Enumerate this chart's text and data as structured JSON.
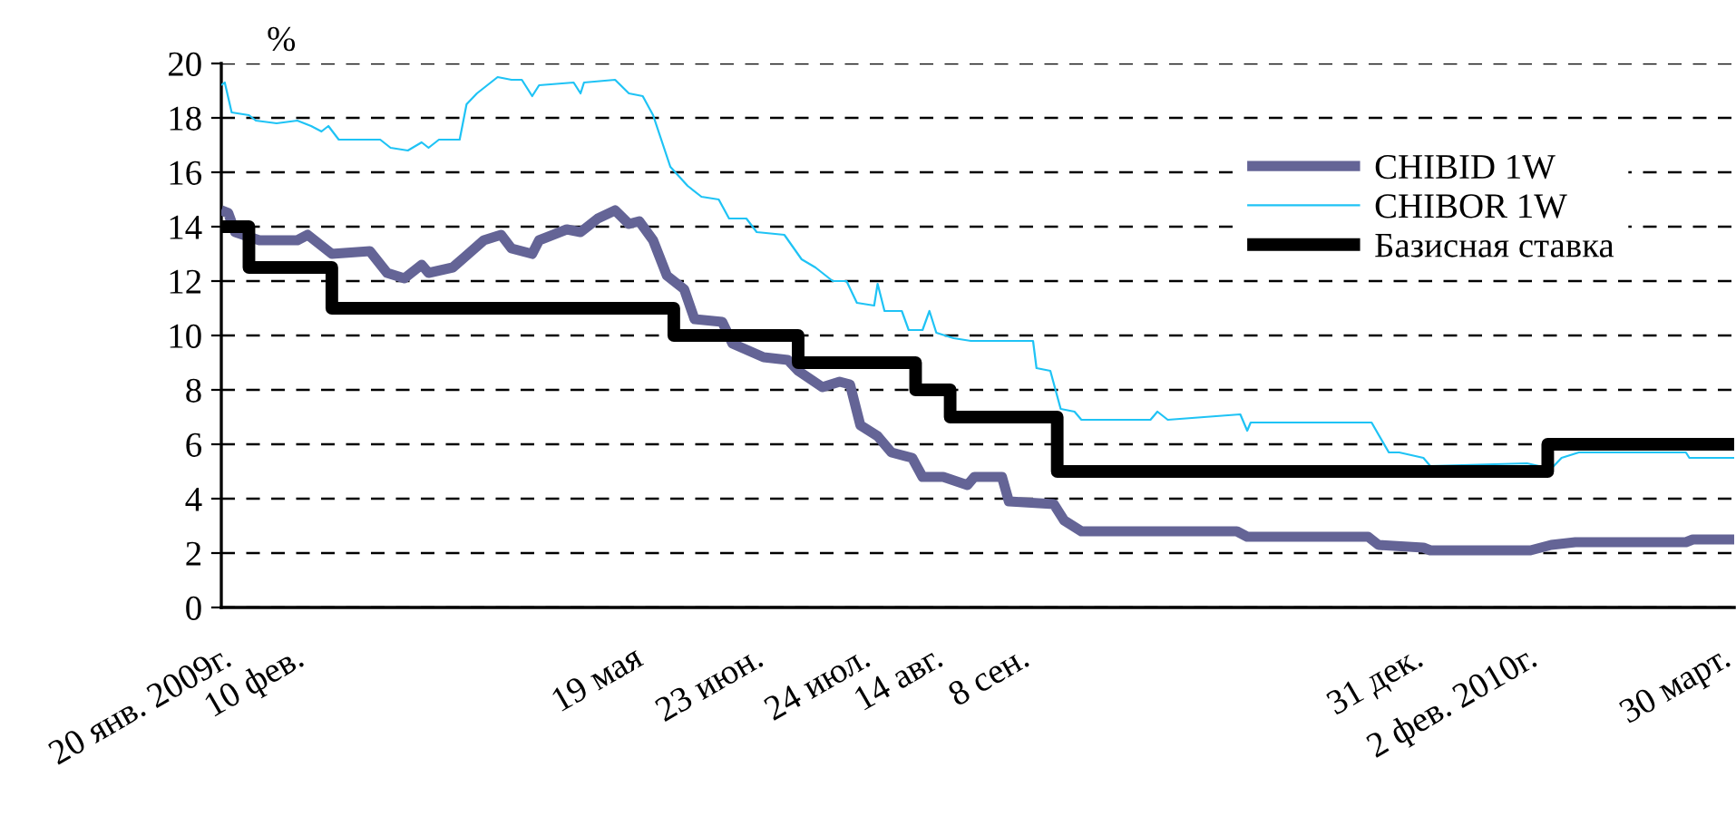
{
  "chart_data": {
    "type": "line",
    "ylabel": "%",
    "xlim": [
      "2009-01-20",
      "2010-04-03"
    ],
    "xticks": [
      {
        "value": "2009-01-20",
        "label": "20 янв. 2009г."
      },
      {
        "value": "2009-02-10",
        "label": "10 фев."
      },
      {
        "value": "2009-05-19",
        "label": "19 мая"
      },
      {
        "value": "2009-06-23",
        "label": "23 июн."
      },
      {
        "value": "2009-07-24",
        "label": "24 июл."
      },
      {
        "value": "2009-08-14",
        "label": "14 авг."
      },
      {
        "value": "2009-09-08",
        "label": "8 сен."
      },
      {
        "value": "2009-12-31",
        "label": "31 дек."
      },
      {
        "value": "2010-02-02",
        "label": "2 фев. 2010г."
      },
      {
        "value": "2010-03-30",
        "label": "30 март."
      }
    ],
    "ylim": [
      0,
      20
    ],
    "yticks": [
      0,
      2,
      4,
      6,
      8,
      10,
      12,
      14,
      16,
      18,
      20
    ],
    "grid": "y",
    "legend": "top right",
    "marker": "none",
    "line_style": "solid",
    "series": [
      {
        "name": "CHIBID 1W",
        "color": "#646496",
        "type": "line",
        "x": [
          "2009-01-20",
          "2009-01-22",
          "2009-01-24",
          "2009-01-31",
          "2009-02-11",
          "2009-02-14",
          "2009-02-21",
          "2009-03-04",
          "2009-03-09",
          "2009-03-14",
          "2009-03-19",
          "2009-03-21",
          "2009-03-28",
          "2009-04-06",
          "2009-04-11",
          "2009-04-14",
          "2009-04-20",
          "2009-04-22",
          "2009-04-30",
          "2009-05-04",
          "2009-05-09",
          "2009-05-14",
          "2009-05-18",
          "2009-05-21",
          "2009-05-25",
          "2009-05-29",
          "2009-06-03",
          "2009-06-06",
          "2009-06-14",
          "2009-06-17",
          "2009-06-26",
          "2009-07-03",
          "2009-07-06",
          "2009-07-13",
          "2009-07-18",
          "2009-07-21",
          "2009-07-24",
          "2009-07-29",
          "2009-08-02",
          "2009-08-08",
          "2009-08-11",
          "2009-08-17",
          "2009-08-24",
          "2009-08-26",
          "2009-09-03",
          "2009-09-05",
          "2009-09-18",
          "2009-09-21",
          "2009-09-26",
          "2009-11-10",
          "2009-11-13",
          "2009-12-18",
          "2009-12-21",
          "2010-01-03",
          "2010-01-05",
          "2010-02-03",
          "2010-02-09",
          "2010-02-16",
          "2010-03-20",
          "2010-03-22",
          "2010-04-03"
        ],
        "values": [
          14.6,
          14.5,
          13.8,
          13.5,
          13.5,
          13.7,
          13.0,
          13.1,
          12.3,
          12.1,
          12.6,
          12.3,
          12.5,
          13.5,
          13.7,
          13.2,
          13.0,
          13.5,
          13.9,
          13.8,
          14.3,
          14.6,
          14.1,
          14.2,
          13.5,
          12.2,
          11.7,
          10.6,
          10.5,
          9.7,
          9.2,
          9.1,
          8.7,
          8.1,
          8.3,
          8.2,
          6.7,
          6.3,
          5.7,
          5.5,
          4.8,
          4.8,
          4.5,
          4.8,
          4.8,
          3.9,
          3.8,
          3.2,
          2.8,
          2.8,
          2.6,
          2.6,
          2.3,
          2.2,
          2.1,
          2.1,
          2.3,
          2.4,
          2.4,
          2.5,
          2.5
        ]
      },
      {
        "name": "CHIBOR 1W",
        "color": "#1fc3f5",
        "type": "line",
        "x": [
          "2009-01-20",
          "2009-01-21",
          "2009-01-23",
          "2009-01-28",
          "2009-01-30",
          "2009-02-05",
          "2009-02-11",
          "2009-02-15",
          "2009-02-18",
          "2009-02-20",
          "2009-02-23",
          "2009-03-07",
          "2009-03-10",
          "2009-03-15",
          "2009-03-19",
          "2009-03-21",
          "2009-03-24",
          "2009-03-30",
          "2009-04-01",
          "2009-04-04",
          "2009-04-10",
          "2009-04-14",
          "2009-04-17",
          "2009-04-20",
          "2009-04-22",
          "2009-05-02",
          "2009-05-04",
          "2009-05-05",
          "2009-05-14",
          "2009-05-18",
          "2009-05-22",
          "2009-05-25",
          "2009-05-30",
          "2009-06-04",
          "2009-06-08",
          "2009-06-13",
          "2009-06-16",
          "2009-06-21",
          "2009-06-24",
          "2009-07-02",
          "2009-07-07",
          "2009-07-11",
          "2009-07-16",
          "2009-07-20",
          "2009-07-23",
          "2009-07-28",
          "2009-07-29",
          "2009-07-31",
          "2009-08-05",
          "2009-08-07",
          "2009-08-11",
          "2009-08-13",
          "2009-08-15",
          "2009-08-20",
          "2009-08-25",
          "2009-09-12",
          "2009-09-13",
          "2009-09-17",
          "2009-09-20",
          "2009-09-24",
          "2009-09-26",
          "2009-10-16",
          "2009-10-18",
          "2009-10-21",
          "2009-11-11",
          "2009-11-13",
          "2009-11-14",
          "2009-12-19",
          "2009-12-24",
          "2009-12-27",
          "2010-01-03",
          "2010-01-05",
          "2010-02-02",
          "2010-02-09",
          "2010-02-12",
          "2010-02-17",
          "2010-03-20",
          "2010-03-21",
          "2010-04-03"
        ],
        "values": [
          19.2,
          19.3,
          18.2,
          18.1,
          17.9,
          17.8,
          17.9,
          17.7,
          17.5,
          17.7,
          17.2,
          17.2,
          16.9,
          16.8,
          17.1,
          16.9,
          17.2,
          17.2,
          18.5,
          18.9,
          19.5,
          19.4,
          19.4,
          18.8,
          19.2,
          19.3,
          18.9,
          19.3,
          19.4,
          18.9,
          18.8,
          18.1,
          16.2,
          15.5,
          15.1,
          15.0,
          14.3,
          14.3,
          13.8,
          13.7,
          12.8,
          12.5,
          12.0,
          12.0,
          11.2,
          11.1,
          11.9,
          10.9,
          10.9,
          10.2,
          10.2,
          10.9,
          10.1,
          9.9,
          9.8,
          9.8,
          8.8,
          8.7,
          7.3,
          7.2,
          6.9,
          6.9,
          7.2,
          6.9,
          7.1,
          6.5,
          6.8,
          6.8,
          5.7,
          5.7,
          5.5,
          5.2,
          5.3,
          5.1,
          5.5,
          5.7,
          5.7,
          5.5,
          5.5
        ]
      },
      {
        "name": "Базисная ставка",
        "color": "#000000",
        "type": "step",
        "x": [
          "2009-01-20",
          "2009-01-28",
          "2009-02-21",
          "2009-05-31",
          "2009-07-06",
          "2009-08-09",
          "2009-08-19",
          "2009-09-19",
          "2010-02-08",
          "2010-04-03"
        ],
        "values": [
          14,
          12.5,
          11,
          10,
          9,
          8,
          7,
          5,
          6,
          6
        ]
      }
    ]
  }
}
